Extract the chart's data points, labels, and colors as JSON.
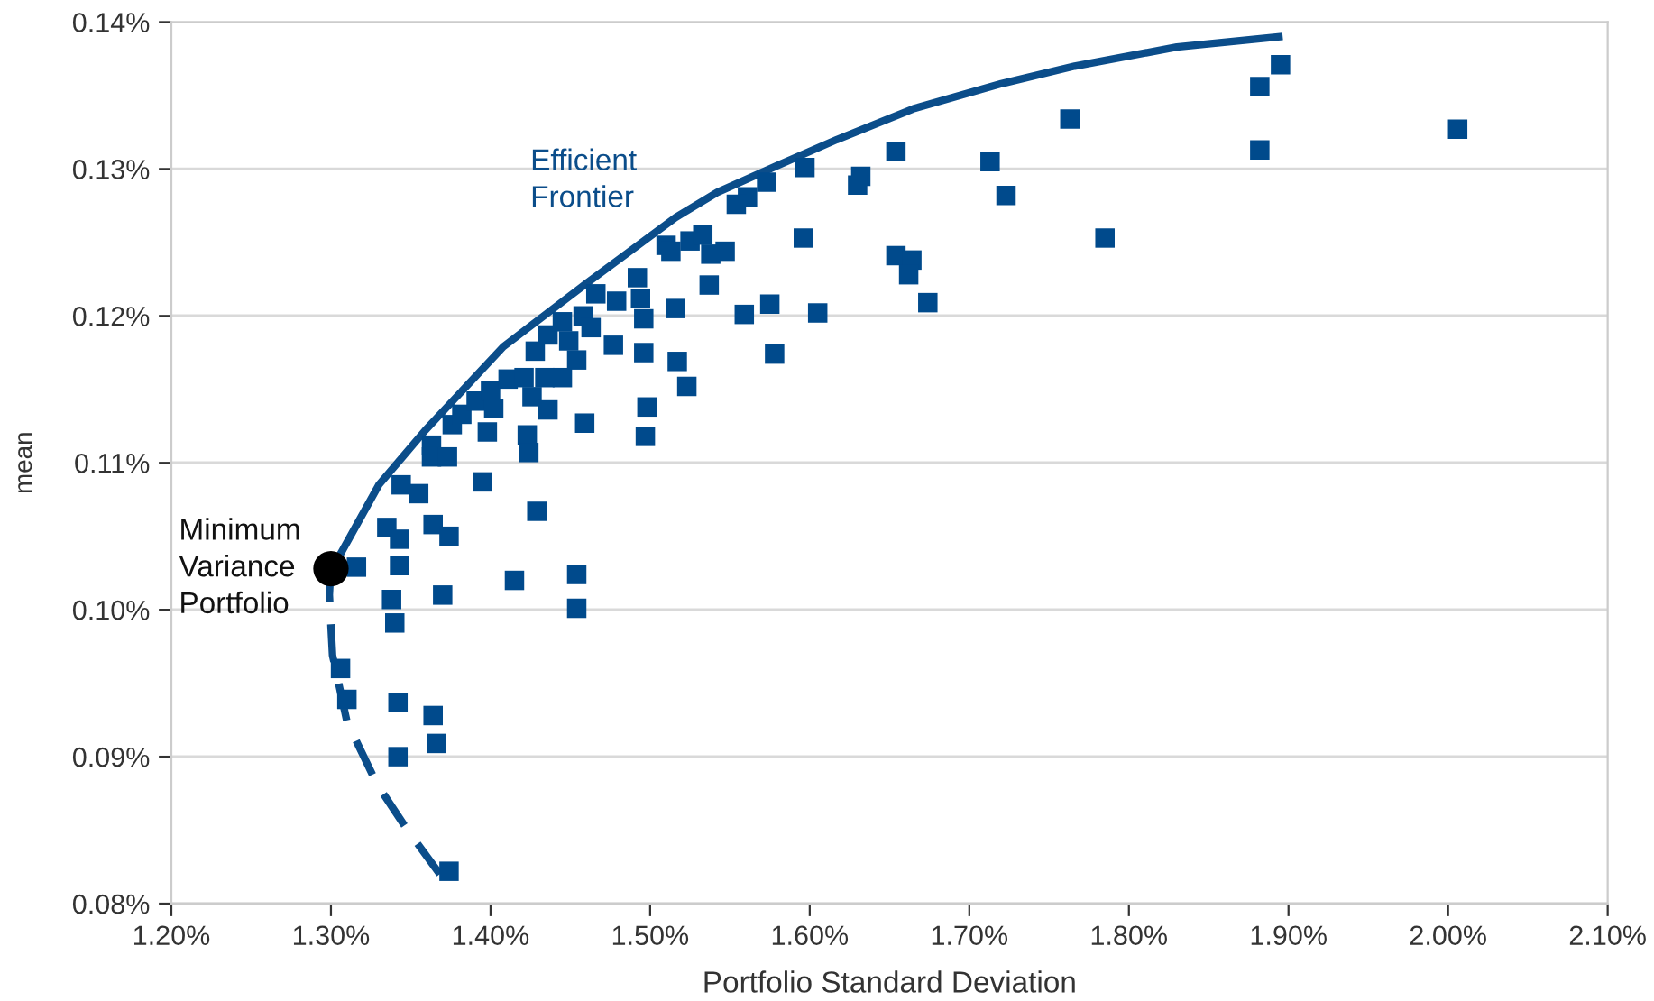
{
  "chart_data": {
    "type": "scatter",
    "xlabel": "Portfolio Standard Deviation",
    "ylabel": "mean",
    "xlim": [
      1.2,
      2.1
    ],
    "ylim": [
      0.08,
      0.14
    ],
    "xticks": [
      {
        "value": 1.2,
        "label": "1.20%"
      },
      {
        "value": 1.3,
        "label": "1.30%"
      },
      {
        "value": 1.4,
        "label": "1.40%"
      },
      {
        "value": 1.5,
        "label": "1.50%"
      },
      {
        "value": 1.6,
        "label": "1.60%"
      },
      {
        "value": 1.7,
        "label": "1.70%"
      },
      {
        "value": 1.8,
        "label": "1.80%"
      },
      {
        "value": 1.9,
        "label": "1.90%"
      },
      {
        "value": 2.0,
        "label": "2.00%"
      },
      {
        "value": 2.1,
        "label": "2.10%"
      }
    ],
    "yticks": [
      {
        "value": 0.08,
        "label": "0.08%"
      },
      {
        "value": 0.09,
        "label": "0.09%"
      },
      {
        "value": 0.1,
        "label": "0.10%"
      },
      {
        "value": 0.11,
        "label": "0.11%"
      },
      {
        "value": 0.12,
        "label": "0.12%"
      },
      {
        "value": 0.13,
        "label": "0.13%"
      },
      {
        "value": 0.14,
        "label": "0.14%"
      }
    ],
    "grid": "y",
    "marker": "square",
    "series": [
      {
        "color": "#004a8c",
        "x": [
          1.316,
          1.343,
          1.338,
          1.37,
          1.415,
          1.454,
          1.454,
          1.335,
          1.343,
          1.364,
          1.374,
          1.344,
          1.355,
          1.395,
          1.429,
          1.363,
          1.363,
          1.373,
          1.376,
          1.382,
          1.398,
          1.391,
          1.4,
          1.402,
          1.411,
          1.421,
          1.434,
          1.445,
          1.426,
          1.436,
          1.423,
          1.424,
          1.459,
          1.428,
          1.436,
          1.445,
          1.449,
          1.458,
          1.463,
          1.454,
          1.466,
          1.479,
          1.492,
          1.494,
          1.496,
          1.477,
          1.496,
          1.498,
          1.497,
          1.516,
          1.517,
          1.523,
          1.537,
          1.51,
          1.513,
          1.525,
          1.533,
          1.538,
          1.547,
          1.559,
          1.34,
          1.306,
          1.31,
          1.342,
          1.364,
          1.366,
          1.342,
          1.374,
          1.763,
          1.654,
          1.713,
          1.597,
          1.632,
          1.63,
          1.573,
          1.561,
          1.554,
          1.723,
          1.596,
          1.785,
          1.654,
          1.664,
          1.662,
          1.674,
          1.575,
          1.605,
          1.578,
          1.895,
          1.882,
          1.882,
          2.006
        ],
        "values": [
          0.1029,
          0.103,
          0.1007,
          0.101,
          0.102,
          0.1024,
          0.1001,
          0.1056,
          0.1048,
          0.1058,
          0.105,
          0.1085,
          0.1079,
          0.1087,
          0.1067,
          0.1112,
          0.1104,
          0.1104,
          0.1126,
          0.1133,
          0.1121,
          0.1142,
          0.1149,
          0.1137,
          0.1157,
          0.1158,
          0.1158,
          0.1158,
          0.1145,
          0.1136,
          0.1119,
          0.1107,
          0.1127,
          0.1176,
          0.1187,
          0.1196,
          0.1183,
          0.12,
          0.1192,
          0.117,
          0.1215,
          0.121,
          0.1226,
          0.1212,
          0.1198,
          0.118,
          0.1175,
          0.1138,
          0.1118,
          0.1205,
          0.1169,
          0.1152,
          0.1221,
          0.1248,
          0.1244,
          0.1251,
          0.1255,
          0.1242,
          0.1244,
          0.1201,
          0.0991,
          0.096,
          0.0939,
          0.0937,
          0.0928,
          0.0909,
          0.09,
          0.0822,
          0.1334,
          0.1312,
          0.1305,
          0.1301,
          0.1295,
          0.1289,
          0.1291,
          0.1281,
          0.1276,
          0.1282,
          0.1253,
          0.1253,
          0.1241,
          0.1238,
          0.1228,
          0.1209,
          0.1208,
          0.1202,
          0.1174,
          0.1371,
          0.1356,
          0.1313,
          0.1327
        ]
      },
      {
        "type": "line",
        "color": "#0b4d8a",
        "line_style": "solid",
        "marker": "none",
        "x": [
          1.307,
          1.33,
          1.359,
          1.408,
          1.46,
          1.516,
          1.542,
          1.579,
          1.617,
          1.665,
          1.72,
          1.766,
          1.83,
          1.894
        ],
        "values": [
          0.104,
          0.1085,
          0.1122,
          0.1179,
          0.1222,
          0.1267,
          0.1284,
          0.1302,
          0.132,
          0.1341,
          0.1358,
          0.137,
          0.1383,
          0.139
        ]
      },
      {
        "type": "line",
        "color": "#0b4d8a",
        "line_style": "dashed",
        "marker": "none",
        "x": [
          1.3,
          1.299,
          1.301,
          1.31,
          1.329,
          1.348,
          1.371
        ],
        "values": [
          0.1031,
          0.101,
          0.0969,
          0.0924,
          0.0881,
          0.085,
          0.0816
        ]
      },
      {
        "type": "scatter",
        "color": "#000000",
        "marker": "circle",
        "x": [
          1.3
        ],
        "values": [
          0.1028
        ]
      }
    ],
    "annotations": [
      "Efficient\nFrontier",
      {
        "text": "Minimum\nVariance\nPortfolio",
        "x": 1.3,
        "y": 0.1028
      }
    ]
  }
}
